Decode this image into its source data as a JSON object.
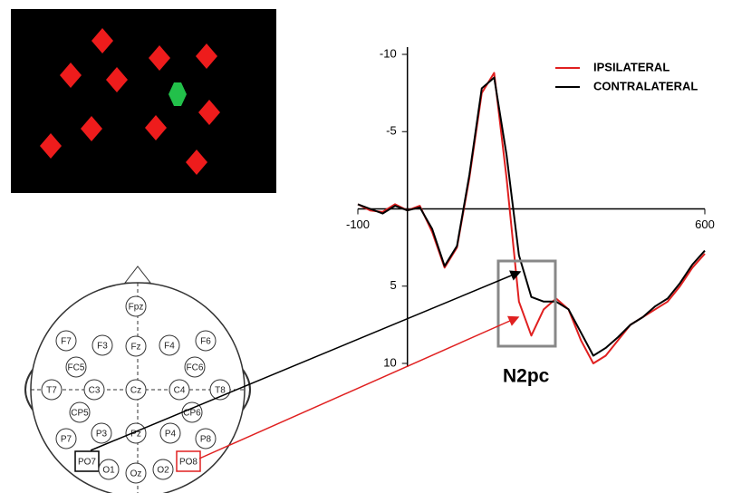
{
  "chart_data": {
    "type": "line",
    "x": [
      -100,
      -75,
      -50,
      -25,
      0,
      25,
      50,
      75,
      100,
      125,
      150,
      175,
      200,
      225,
      250,
      275,
      300,
      325,
      350,
      375,
      400,
      425,
      450,
      475,
      500,
      525,
      550,
      575,
      600
    ],
    "series": [
      {
        "name": "IPSILATERAL",
        "color": "#e02020",
        "values": [
          -0.3,
          0.1,
          0.2,
          -0.3,
          0.1,
          -0.2,
          1.5,
          3.8,
          2.5,
          -2,
          -7.5,
          -8.8,
          -2,
          6,
          8.2,
          6.5,
          5.8,
          6.5,
          8.5,
          10,
          9.5,
          8.5,
          7.5,
          7,
          6.5,
          6,
          5,
          3.8,
          2.9
        ]
      },
      {
        "name": "CONTRALATERAL",
        "color": "#000000",
        "values": [
          -0.3,
          0,
          0.3,
          -0.2,
          0.1,
          -0.1,
          1.3,
          3.7,
          2.4,
          -2.2,
          -7.8,
          -8.5,
          -3.5,
          3,
          5.7,
          6,
          6,
          6.5,
          8,
          9.5,
          9,
          8.3,
          7.5,
          7,
          6.3,
          5.8,
          4.8,
          3.6,
          2.7
        ]
      }
    ],
    "xlim": [
      -100,
      600
    ],
    "xticks": [
      -100,
      600
    ],
    "ylim": [
      -10,
      10
    ],
    "yticks": [
      -10,
      -5,
      5,
      10
    ],
    "y_inverted": true,
    "annotation": "N2pc"
  },
  "head_map": {
    "electrodes": [
      "Fpz",
      "F7",
      "F3",
      "Fz",
      "F4",
      "F6",
      "FC5",
      "FC6",
      "T7",
      "C3",
      "Cz",
      "C4",
      "T8",
      "CP5",
      "CP6",
      "P7",
      "P3",
      "Pz",
      "P4",
      "P8",
      "PO7",
      "O1",
      "Oz",
      "O2",
      "PO8"
    ]
  }
}
